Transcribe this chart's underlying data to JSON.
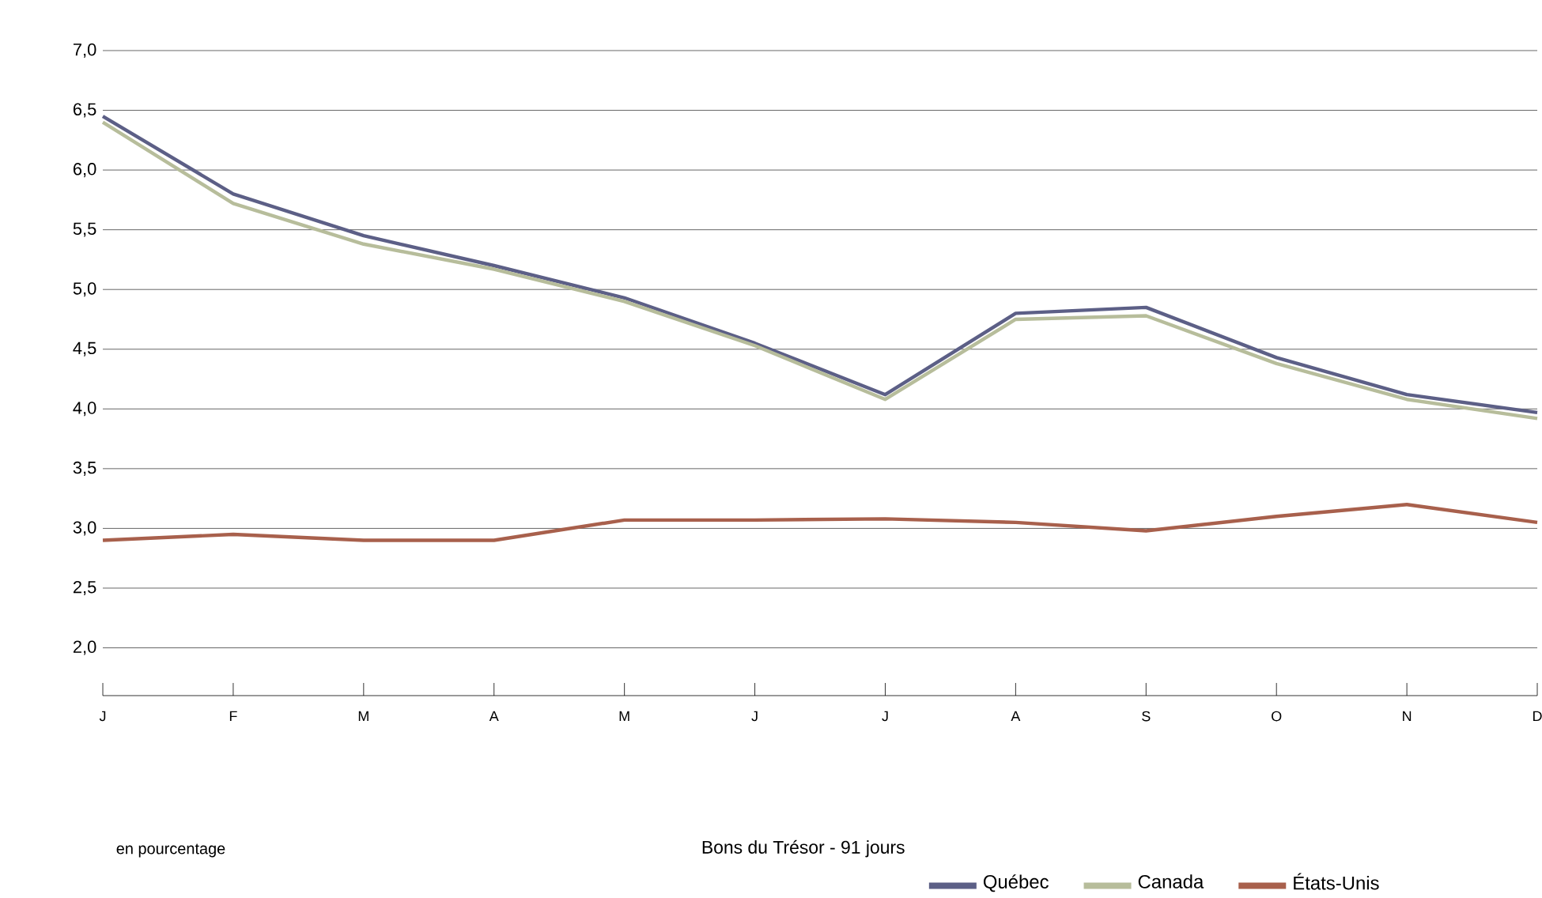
{
  "chart_data": {
    "type": "line",
    "legend_title": "Bons du Trésor - 91 jours",
    "annotations": [
      "en pourcentage"
    ],
    "categories": [
      "J",
      "F",
      "M",
      "A",
      "M",
      "J",
      "J",
      "A",
      "S",
      "O",
      "N",
      "D"
    ],
    "series": [
      {
        "name": "Québec",
        "color": "#5c5f86",
        "values": [
          6.45,
          5.8,
          5.45,
          5.2,
          4.93,
          4.55,
          4.12,
          4.8,
          4.85,
          4.43,
          4.12,
          3.97
        ]
      },
      {
        "name": "Canada",
        "color": "#b7bd9b",
        "values": [
          6.4,
          5.72,
          5.38,
          5.17,
          4.9,
          4.53,
          4.08,
          4.75,
          4.78,
          4.38,
          4.08,
          3.92
        ]
      },
      {
        "name": "États-Unis",
        "color": "#a8604c",
        "values": [
          2.9,
          2.95,
          2.9,
          2.9,
          3.07,
          3.07,
          3.08,
          3.05,
          2.98,
          3.1,
          3.2,
          3.05
        ]
      }
    ],
    "ylim": [
      1.6,
      7.0
    ],
    "yticks": [
      {
        "value": 2.0,
        "label": "2,0"
      },
      {
        "value": 2.5,
        "label": "2,5"
      },
      {
        "value": 3.0,
        "label": "3,0"
      },
      {
        "value": 3.5,
        "label": "3,5"
      },
      {
        "value": 4.0,
        "label": "4,0"
      },
      {
        "value": 4.5,
        "label": "4,5"
      },
      {
        "value": 5.0,
        "label": "5,0"
      },
      {
        "value": 5.5,
        "label": "5,5"
      },
      {
        "value": 6.0,
        "label": "6,0"
      },
      {
        "value": 6.5,
        "label": "6,5"
      },
      {
        "value": 7.0,
        "label": "7,0"
      }
    ],
    "grid": "y",
    "legend": "bottom",
    "marker": "none",
    "line_style": "solid"
  }
}
